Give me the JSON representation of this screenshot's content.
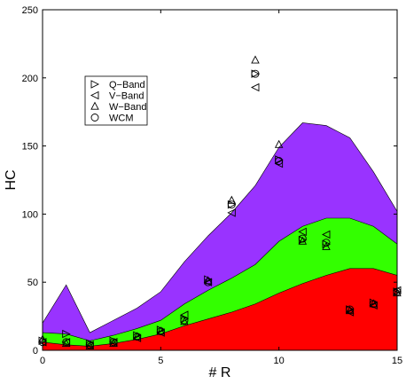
{
  "chart_data": {
    "type": "area",
    "xlabel": "# R",
    "ylabel": "HC",
    "xlim": [
      0,
      15
    ],
    "ylim": [
      0,
      250
    ],
    "xticks": [
      0,
      5,
      10,
      15
    ],
    "yticks": [
      0,
      50,
      100,
      150,
      200,
      250
    ],
    "grid": false,
    "legend_position": "upper-left",
    "x": [
      0,
      1,
      2,
      3,
      4,
      5,
      6,
      7,
      8,
      9,
      10,
      11,
      12,
      13,
      14,
      15
    ],
    "areas": [
      {
        "color": "#9933ff",
        "upper": [
          20,
          48,
          13,
          22,
          31,
          43,
          65,
          84,
          101,
          121,
          149,
          167,
          165,
          156,
          131,
          102
        ]
      },
      {
        "color": "#33ff00",
        "upper": [
          13,
          12,
          7,
          11,
          16,
          22,
          34,
          44,
          53,
          63,
          80,
          91,
          97,
          97,
          91,
          78
        ]
      },
      {
        "color": "#ff0000",
        "upper": [
          6,
          4,
          3,
          5,
          8,
          12,
          18,
          23,
          28,
          34,
          42,
          49,
          55,
          60,
          60,
          55
        ]
      }
    ],
    "series": [
      {
        "name": "Q−Band",
        "marker": "triangle-right",
        "points": [
          [
            0,
            7
          ],
          [
            1,
            12
          ],
          [
            2,
            5
          ],
          [
            3,
            7
          ],
          [
            4,
            11
          ],
          [
            5,
            15
          ],
          [
            6,
            23
          ],
          [
            7,
            52
          ],
          [
            8,
            107
          ],
          [
            9,
            203
          ],
          [
            10,
            140
          ],
          [
            11,
            81
          ],
          [
            12,
            78
          ],
          [
            13,
            30
          ],
          [
            14,
            35
          ],
          [
            15,
            43
          ]
        ]
      },
      {
        "name": "V−Band",
        "marker": "triangle-left",
        "points": [
          [
            0,
            6
          ],
          [
            1,
            6
          ],
          [
            2,
            4
          ],
          [
            3,
            6
          ],
          [
            4,
            9
          ],
          [
            5,
            13
          ],
          [
            6,
            26
          ],
          [
            7,
            50
          ],
          [
            8,
            101
          ],
          [
            9,
            193
          ],
          [
            10,
            137
          ],
          [
            11,
            87
          ],
          [
            12,
            85
          ],
          [
            13,
            28
          ],
          [
            14,
            33
          ],
          [
            15,
            44
          ]
        ]
      },
      {
        "name": "W−Band",
        "marker": "triangle-up",
        "points": [
          [
            0,
            8
          ],
          [
            1,
            5
          ],
          [
            2,
            3
          ],
          [
            3,
            5
          ],
          [
            4,
            10
          ],
          [
            5,
            14
          ],
          [
            6,
            21
          ],
          [
            7,
            51
          ],
          [
            8,
            110
          ],
          [
            9,
            213
          ],
          [
            10,
            151
          ],
          [
            11,
            80
          ],
          [
            12,
            76
          ],
          [
            13,
            29
          ],
          [
            14,
            34
          ],
          [
            15,
            42
          ]
        ]
      },
      {
        "name": "WCM",
        "marker": "circle",
        "points": [
          [
            0,
            6
          ],
          [
            1,
            6
          ],
          [
            2,
            4
          ],
          [
            3,
            6
          ],
          [
            4,
            10
          ],
          [
            5,
            14
          ],
          [
            6,
            22
          ],
          [
            7,
            50
          ],
          [
            8,
            107
          ],
          [
            9,
            203
          ],
          [
            10,
            139
          ],
          [
            11,
            82
          ],
          [
            12,
            79
          ],
          [
            13,
            30
          ],
          [
            14,
            34
          ],
          [
            15,
            43
          ]
        ]
      }
    ]
  }
}
